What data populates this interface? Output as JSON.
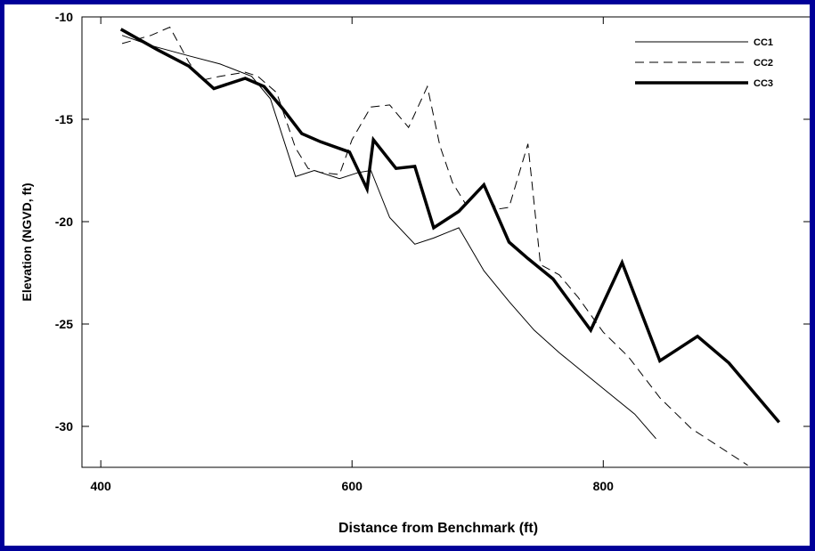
{
  "chart_data": {
    "type": "line",
    "title": "",
    "xlabel": "Distance from Benchmark (ft)",
    "ylabel": "Elevation (NGVD, ft)",
    "xlim": [
      385,
      965
    ],
    "ylim": [
      -32,
      -10
    ],
    "xticks": [
      400,
      600,
      800
    ],
    "yticks": [
      -10,
      -15,
      -20,
      -25,
      -30
    ],
    "grid": false,
    "legend_position": "top-right",
    "series": [
      {
        "name": "CC1",
        "style": "thin-solid",
        "x": [
          417,
          440,
          470,
          495,
          520,
          535,
          555,
          570,
          590,
          605,
          615,
          630,
          650,
          665,
          685,
          705,
          725,
          745,
          765,
          785,
          805,
          825,
          842
        ],
        "y": [
          -10.9,
          -11.4,
          -11.9,
          -12.3,
          -12.9,
          -14.0,
          -17.8,
          -17.5,
          -17.9,
          -17.6,
          -17.5,
          -19.8,
          -21.1,
          -20.8,
          -20.3,
          -22.4,
          -23.9,
          -25.3,
          -26.4,
          -27.4,
          -28.4,
          -29.4,
          -30.6
        ]
      },
      {
        "name": "CC2",
        "style": "dashed",
        "x": [
          417,
          440,
          455,
          470,
          480,
          495,
          515,
          525,
          540,
          555,
          565,
          575,
          590,
          600,
          615,
          630,
          645,
          660,
          670,
          680,
          690,
          705,
          715,
          725,
          740,
          750,
          765,
          780,
          800,
          820,
          845,
          870,
          900,
          915
        ],
        "y": [
          -11.3,
          -10.9,
          -10.5,
          -12.2,
          -13.1,
          -12.9,
          -12.7,
          -12.9,
          -13.7,
          -16.4,
          -17.4,
          -17.6,
          -17.7,
          -16.0,
          -14.4,
          -14.3,
          -15.4,
          -13.4,
          -16.3,
          -18.1,
          -19.1,
          -18.3,
          -19.4,
          -19.3,
          -16.2,
          -22.1,
          -22.6,
          -23.7,
          -25.4,
          -26.6,
          -28.6,
          -30.1,
          -31.3,
          -31.9
        ]
      },
      {
        "name": "CC3",
        "style": "thick-solid",
        "x": [
          416,
          445,
          470,
          490,
          515,
          530,
          545,
          560,
          575,
          598,
          612,
          617,
          635,
          650,
          665,
          685,
          705,
          725,
          740,
          760,
          790,
          815,
          845,
          875,
          900,
          940
        ],
        "y": [
          -10.6,
          -11.6,
          -12.4,
          -13.5,
          -13.0,
          -13.4,
          -14.5,
          -15.7,
          -16.1,
          -16.6,
          -18.4,
          -16.0,
          -17.4,
          -17.3,
          -20.3,
          -19.5,
          -18.2,
          -21.0,
          -21.8,
          -22.8,
          -25.3,
          -22.0,
          -26.8,
          -25.6,
          -26.9,
          -29.8
        ]
      }
    ]
  }
}
